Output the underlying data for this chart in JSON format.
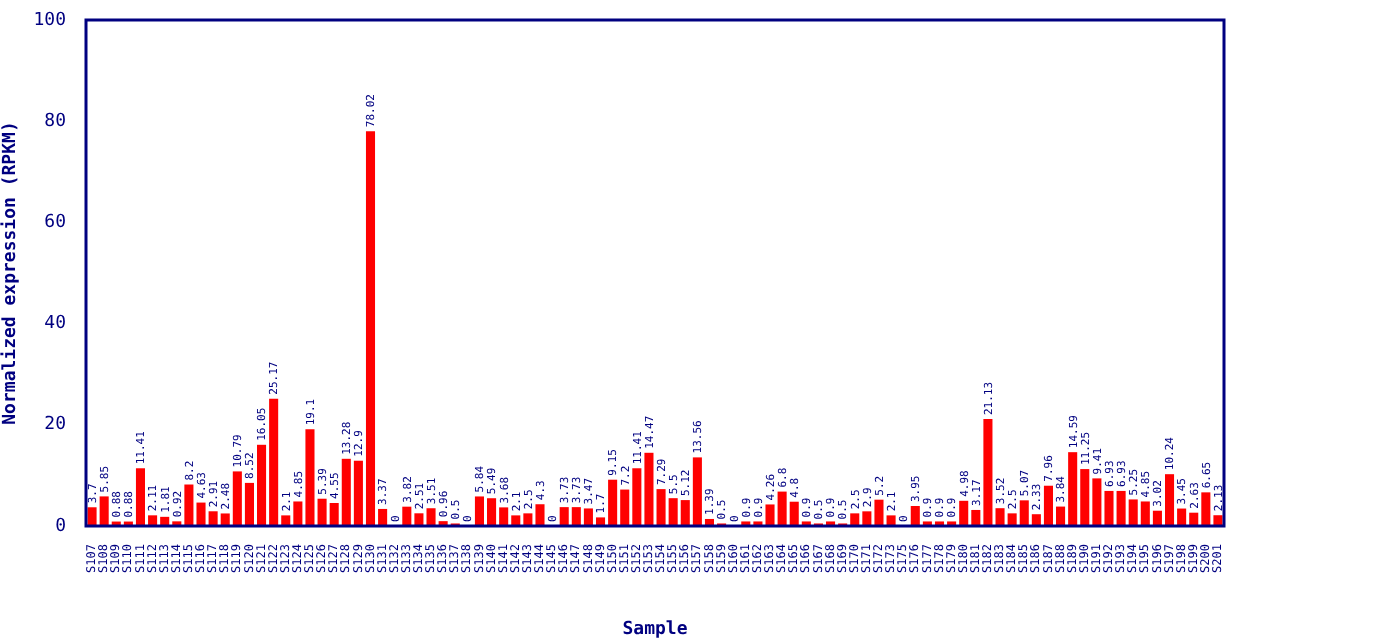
{
  "chart_data": {
    "type": "bar",
    "xlabel": "Sample",
    "ylabel": "Normalized expression (RPKM)",
    "categories": [
      "S107",
      "S108",
      "S109",
      "S110",
      "S111",
      "S112",
      "S113",
      "S114",
      "S115",
      "S116",
      "S117",
      "S118",
      "S119",
      "S120",
      "S121",
      "S122",
      "S123",
      "S124",
      "S125",
      "S126",
      "S127",
      "S128",
      "S129",
      "S130",
      "S131",
      "S132",
      "S133",
      "S134",
      "S135",
      "S136",
      "S137",
      "S138",
      "S139",
      "S140",
      "S141",
      "S142",
      "S143",
      "S144",
      "S145",
      "S146",
      "S147",
      "S148",
      "S149",
      "S150",
      "S151",
      "S152",
      "S153",
      "S154",
      "S155",
      "S156",
      "S157",
      "S158",
      "S159",
      "S160",
      "S161",
      "S162",
      "S163",
      "S164",
      "S165",
      "S166",
      "S167",
      "S168",
      "S169",
      "S170",
      "S171",
      "S172",
      "S173",
      "S175",
      "S176",
      "S177",
      "S178",
      "S179",
      "S180",
      "S181",
      "S182",
      "S183",
      "S184",
      "S185",
      "S186",
      "S187",
      "S188",
      "S189",
      "S190",
      "S191",
      "S192",
      "S193",
      "S194",
      "S195",
      "S196",
      "S197",
      "S198",
      "S199",
      "S200",
      "S201"
    ],
    "values": [
      3.7,
      5.85,
      0.88,
      0.88,
      11.41,
      2.11,
      1.81,
      0.92,
      8.2,
      4.63,
      2.91,
      2.48,
      10.79,
      8.52,
      16.05,
      25.17,
      2.1,
      4.85,
      19.1,
      5.39,
      4.55,
      13.28,
      12.9,
      78.02,
      3.37,
      0,
      3.82,
      2.51,
      3.51,
      0.96,
      0.5,
      0,
      5.84,
      5.49,
      3.68,
      2.1,
      2.5,
      4.3,
      0,
      3.73,
      3.73,
      3.47,
      1.7,
      9.15,
      7.2,
      11.41,
      14.47,
      7.29,
      5.5,
      5.12,
      13.56,
      1.39,
      0.5,
      0,
      0.9,
      0.9,
      4.26,
      6.8,
      4.8,
      0.9,
      0.5,
      0.9,
      0.5,
      2.5,
      2.9,
      5.2,
      2.1,
      0,
      3.95,
      0.9,
      0.9,
      0.9,
      4.98,
      3.17,
      21.13,
      3.52,
      2.5,
      5.07,
      2.33,
      7.96,
      3.84,
      14.59,
      11.25,
      9.41,
      6.93,
      6.93,
      5.25,
      4.85,
      3.02,
      10.24,
      3.45,
      2.63,
      6.65,
      2.13
    ],
    "color": "#ff0000",
    "ylim": [
      0,
      100
    ],
    "yticks": [
      0,
      20,
      40,
      60,
      80,
      100
    ],
    "data_labels": true
  }
}
